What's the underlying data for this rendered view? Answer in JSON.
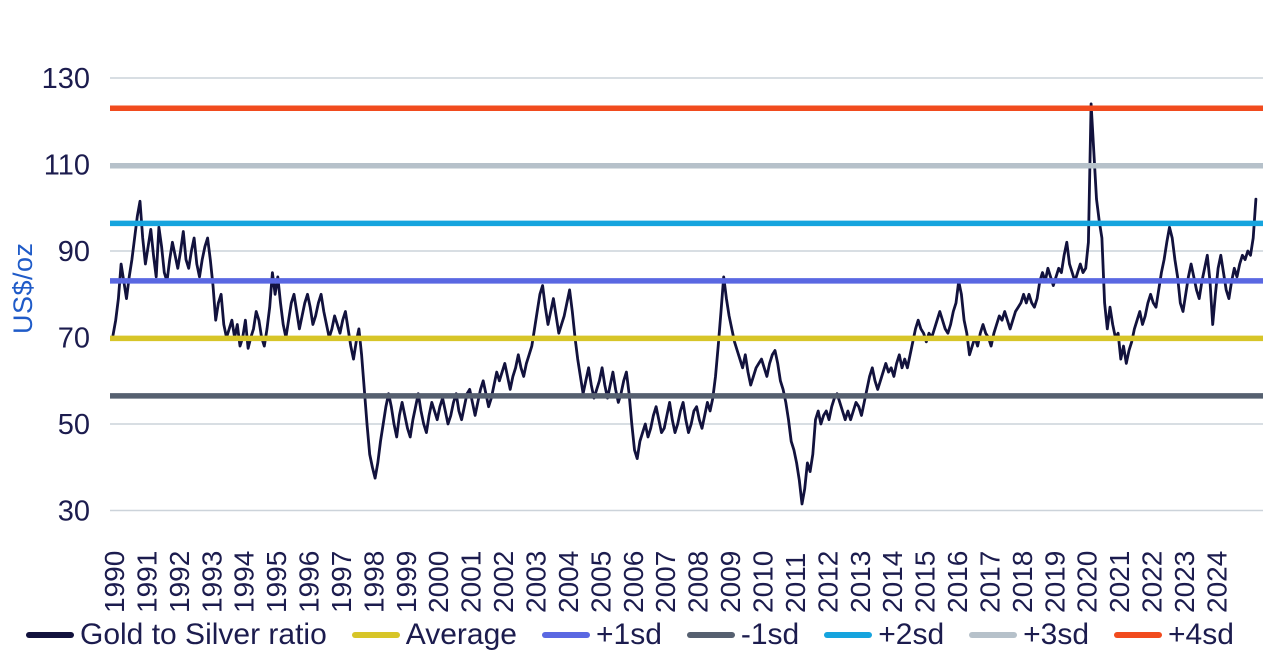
{
  "page": {
    "background": "#ffffff"
  },
  "chart_data": {
    "type": "line",
    "title": "",
    "xlabel": "",
    "ylabel": "US$/oz",
    "grid": "horizontal-only",
    "legend_position": "bottom",
    "x_axis": {
      "start_year": 1990,
      "points_per_year": 12,
      "tick_labels": [
        "1990",
        "1991",
        "1992",
        "1993",
        "1994",
        "1995",
        "1996",
        "1997",
        "1998",
        "1999",
        "2000",
        "2001",
        "2002",
        "2003",
        "2004",
        "2005",
        "2006",
        "2007",
        "2008",
        "2009",
        "2010",
        "2011",
        "2012",
        "2013",
        "2014",
        "2015",
        "2016",
        "2017",
        "2018",
        "2019",
        "2020",
        "2021",
        "2022",
        "2023",
        "2024"
      ]
    },
    "y_axis": {
      "ticks": [
        30,
        50,
        70,
        90,
        110,
        130
      ],
      "range": [
        27,
        140
      ]
    },
    "series": [
      {
        "name": "Gold to Silver ratio",
        "color": "#12123d",
        "values": [
          70.5,
          74,
          79,
          87,
          83,
          79,
          84,
          88,
          93,
          98,
          101.5,
          93,
          87,
          91,
          95,
          89,
          84,
          95.5,
          91,
          85,
          83,
          88,
          92,
          89,
          86,
          90,
          94.5,
          88,
          86,
          90,
          93,
          87,
          84,
          88,
          91,
          93,
          88,
          82,
          74,
          78,
          80,
          73,
          70,
          72,
          74,
          70,
          73,
          68,
          70,
          74,
          67.5,
          70,
          72,
          76,
          74,
          70,
          68,
          72,
          77,
          85,
          80,
          84,
          78,
          73,
          70,
          74,
          78,
          80,
          76,
          72,
          75,
          78,
          80,
          77,
          73,
          75,
          78,
          80,
          76,
          73,
          70,
          72,
          75,
          73,
          71,
          74,
          76,
          72,
          68,
          65,
          69,
          72,
          66,
          58,
          50,
          43,
          40,
          37.5,
          41,
          46,
          50,
          54,
          57,
          54,
          50,
          47,
          52,
          55,
          52,
          49,
          47,
          51,
          54,
          57,
          53,
          50,
          48,
          52,
          55,
          53,
          51,
          54,
          56,
          53,
          50,
          52,
          55,
          57,
          53,
          51,
          54,
          57,
          58,
          55,
          52,
          55,
          58,
          60,
          57,
          54,
          56,
          59,
          62,
          60,
          62,
          64,
          61,
          58,
          61,
          63,
          66,
          63,
          61,
          64,
          66,
          68,
          72,
          76,
          80,
          82,
          77,
          73,
          76,
          79,
          75,
          71,
          73,
          75,
          78,
          81,
          76,
          70,
          65,
          61,
          57,
          60,
          63,
          59,
          56,
          58,
          60,
          63,
          59,
          56,
          59,
          62,
          58,
          55,
          57,
          60,
          62,
          57,
          50,
          44,
          42,
          46,
          48,
          50,
          47,
          49,
          52,
          54,
          51,
          48,
          49,
          52,
          55,
          51,
          48,
          50,
          53,
          55,
          51,
          48,
          50,
          53,
          54,
          51,
          49,
          52,
          55,
          53,
          56,
          61,
          68,
          76,
          84,
          79,
          75,
          72,
          69,
          67,
          65,
          63,
          66,
          62,
          59,
          61,
          63,
          64,
          65,
          63,
          61,
          64,
          66,
          67,
          64,
          60,
          58,
          55,
          51,
          46,
          44,
          41,
          37,
          31.5,
          35,
          41,
          39,
          43,
          51,
          53,
          50,
          52,
          53,
          51,
          54,
          56,
          57,
          55,
          53,
          51,
          53,
          51,
          53,
          55,
          54,
          52,
          55,
          58,
          61,
          63,
          60,
          58,
          60,
          62,
          64,
          62,
          63,
          61,
          64,
          66,
          63,
          65,
          63,
          66,
          69,
          72,
          74,
          72,
          71,
          69,
          71,
          70,
          72,
          74,
          76,
          74,
          72,
          71,
          73,
          76,
          78,
          83,
          80,
          74,
          71,
          66,
          68,
          70,
          68,
          71,
          73,
          71,
          70,
          68,
          71,
          73,
          75,
          74,
          76,
          74,
          72,
          74,
          76,
          77,
          78,
          80,
          78,
          80,
          78,
          77,
          79,
          83,
          85,
          83,
          86,
          84,
          82,
          84,
          86,
          85,
          89,
          92,
          87,
          85,
          83,
          85,
          87,
          85,
          86,
          92,
          124,
          113,
          102,
          97,
          93,
          78,
          72,
          77,
          73,
          70,
          71,
          65,
          68,
          64,
          67,
          69,
          72,
          74,
          76,
          73,
          75,
          78,
          80,
          78,
          77,
          81,
          85,
          88,
          92,
          95.5,
          93,
          88,
          84,
          78,
          76,
          80,
          84,
          87,
          84,
          81,
          79,
          83,
          86,
          89,
          83,
          73,
          80,
          86,
          89,
          85,
          81,
          79,
          83,
          86,
          84,
          87,
          89,
          88,
          90,
          89,
          93,
          102
        ]
      }
    ],
    "reference_lines": [
      {
        "label": "Average",
        "value": 69.8,
        "color": "#d7c528"
      },
      {
        "label": "+1sd",
        "value": 83.1,
        "color": "#5a68e2"
      },
      {
        "label": "-1sd",
        "value": 56.5,
        "color": "#566070"
      },
      {
        "label": "+2sd",
        "value": 96.4,
        "color": "#16a4de"
      },
      {
        "label": "+3sd",
        "value": 109.7,
        "color": "#b6c1ca"
      },
      {
        "label": "+4sd",
        "value": 123.0,
        "color": "#f14b1e"
      }
    ],
    "legend": [
      {
        "label": "Gold to Silver ratio",
        "color": "#12123d"
      },
      {
        "label": "Average",
        "color": "#d7c528"
      },
      {
        "label": "+1sd",
        "color": "#5a68e2"
      },
      {
        "label": "-1sd",
        "color": "#566070"
      },
      {
        "label": "+2sd",
        "color": "#16a4de"
      },
      {
        "label": "+3sd",
        "color": "#b6c1ca"
      },
      {
        "label": "+4sd",
        "color": "#f14b1e"
      }
    ],
    "colors": {
      "gridline": "#ccd3da",
      "tick_text": "#1c1c4e",
      "ylabel_text": "#1f5bc8"
    }
  }
}
